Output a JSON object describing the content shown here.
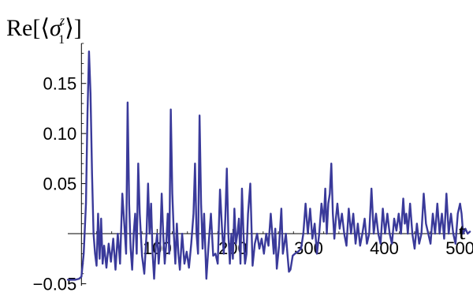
{
  "chart_data": {
    "type": "line",
    "ylabel": {
      "prefix": "Re[⟨",
      "symbol": "σ",
      "superscript": "z",
      "subscript": "1",
      "suffix": "⟩]"
    },
    "xlabel": "t",
    "xlim": [
      -18,
      515
    ],
    "ylim": [
      -0.052,
      0.19
    ],
    "xticks": [
      100,
      200,
      300,
      400,
      500
    ],
    "yticks": [
      -0.05,
      0.05,
      0.1,
      0.15
    ],
    "xtick_labels": [
      "100",
      "200",
      "300",
      "400",
      "500"
    ],
    "ytick_labels": [
      "−0.05",
      "0.05",
      "0.10",
      "0.15"
    ],
    "grid": false,
    "colors": {
      "series": "#3a3a9a",
      "axis": "#000000"
    },
    "series": [
      {
        "points": [
          [
            -18,
            -0.046
          ],
          [
            -8,
            -0.046
          ],
          [
            -3,
            -0.045
          ],
          [
            0,
            -0.043
          ],
          [
            3,
            -0.02
          ],
          [
            6,
            0.03
          ],
          [
            8,
            0.12
          ],
          [
            10,
            0.182
          ],
          [
            12,
            0.14
          ],
          [
            14,
            0.06
          ],
          [
            16,
            0.0
          ],
          [
            18,
            -0.02
          ],
          [
            20,
            -0.032
          ],
          [
            22,
            0.02
          ],
          [
            24,
            -0.025
          ],
          [
            26,
            0.015
          ],
          [
            28,
            -0.03
          ],
          [
            30,
            -0.012
          ],
          [
            33,
            -0.034
          ],
          [
            36,
            -0.01
          ],
          [
            39,
            -0.028
          ],
          [
            42,
            -0.005
          ],
          [
            45,
            -0.036
          ],
          [
            48,
            0.0
          ],
          [
            51,
            -0.03
          ],
          [
            54,
            0.04
          ],
          [
            57,
            0.005
          ],
          [
            59,
            -0.02
          ],
          [
            61,
            0.131
          ],
          [
            63,
            0.03
          ],
          [
            65,
            -0.015
          ],
          [
            67,
            -0.036
          ],
          [
            69,
            0.0
          ],
          [
            71,
            0.02
          ],
          [
            73,
            -0.02
          ],
          [
            75,
            0.07
          ],
          [
            77,
            0.02
          ],
          [
            80,
            -0.022
          ],
          [
            83,
            -0.04
          ],
          [
            86,
            0.0
          ],
          [
            88,
            0.05
          ],
          [
            90,
            0.0
          ],
          [
            92,
            0.03
          ],
          [
            94,
            -0.02
          ],
          [
            96,
            -0.045
          ],
          [
            98,
            -0.015
          ],
          [
            100,
            0.0
          ],
          [
            102,
            -0.03
          ],
          [
            104,
            -0.01
          ],
          [
            106,
            0.04
          ],
          [
            108,
            0.0
          ],
          [
            110,
            -0.03
          ],
          [
            112,
            -0.01
          ],
          [
            114,
            0.02
          ],
          [
            116,
            -0.02
          ],
          [
            118,
            0.124
          ],
          [
            120,
            0.04
          ],
          [
            122,
            0.0
          ],
          [
            124,
            -0.03
          ],
          [
            126,
            0.01
          ],
          [
            128,
            -0.02
          ],
          [
            130,
            -0.036
          ],
          [
            133,
            0.0
          ],
          [
            136,
            -0.03
          ],
          [
            139,
            -0.018
          ],
          [
            142,
            -0.034
          ],
          [
            145,
            -0.01
          ],
          [
            148,
            0.02
          ],
          [
            150,
            0.07
          ],
          [
            152,
            0.0
          ],
          [
            154,
            -0.02
          ],
          [
            156,
            0.118
          ],
          [
            158,
            0.03
          ],
          [
            160,
            -0.015
          ],
          [
            162,
            0.02
          ],
          [
            165,
            -0.045
          ],
          [
            168,
            -0.01
          ],
          [
            171,
            0.02
          ],
          [
            174,
            -0.022
          ],
          [
            177,
            -0.02
          ],
          [
            180,
            -0.03
          ],
          [
            183,
            0.044
          ],
          [
            186,
            0.0
          ],
          [
            188,
            -0.02
          ],
          [
            190,
            0.015
          ],
          [
            192,
            0.065
          ],
          [
            194,
            0.0
          ],
          [
            196,
            -0.03
          ],
          [
            198,
            0.0
          ],
          [
            200,
            -0.025
          ],
          [
            202,
            0.025
          ],
          [
            204,
            -0.01
          ],
          [
            206,
            0.0
          ],
          [
            208,
            0.015
          ],
          [
            210,
            -0.03
          ],
          [
            212,
            0.045
          ],
          [
            214,
            0.0
          ],
          [
            216,
            -0.03
          ],
          [
            218,
            -0.02
          ],
          [
            220,
            0.02
          ],
          [
            223,
            0.05
          ],
          [
            226,
            -0.032
          ],
          [
            229,
            -0.01
          ],
          [
            232,
            0.0
          ],
          [
            235,
            -0.015
          ],
          [
            238,
            -0.005
          ],
          [
            241,
            -0.02
          ],
          [
            244,
            0.0
          ],
          [
            247,
            -0.012
          ],
          [
            250,
            0.02
          ],
          [
            252,
            0.0
          ],
          [
            254,
            -0.02
          ],
          [
            256,
            0.005
          ],
          [
            258,
            -0.035
          ],
          [
            261,
            -0.012
          ],
          [
            264,
            0.025
          ],
          [
            266,
            -0.02
          ],
          [
            268,
            -0.01
          ],
          [
            270,
            0.0
          ],
          [
            272,
            -0.02
          ],
          [
            274,
            -0.038
          ],
          [
            276,
            -0.036
          ],
          [
            279,
            -0.022
          ],
          [
            282,
            -0.02
          ],
          [
            286,
            -0.018
          ],
          [
            290,
            -0.015
          ],
          [
            293,
            0.0
          ],
          [
            296,
            0.03
          ],
          [
            299,
            0.0
          ],
          [
            302,
            0.025
          ],
          [
            305,
            -0.005
          ],
          [
            308,
            0.01
          ],
          [
            311,
            -0.02
          ],
          [
            314,
            0.0
          ],
          [
            317,
            0.03
          ],
          [
            320,
            0.012
          ],
          [
            322,
            0.045
          ],
          [
            324,
            0.0
          ],
          [
            326,
            0.03
          ],
          [
            328,
            0.04
          ],
          [
            330,
            0.07
          ],
          [
            332,
            0.02
          ],
          [
            334,
            -0.005
          ],
          [
            336,
            0.015
          ],
          [
            338,
            0.03
          ],
          [
            341,
            0.005
          ],
          [
            344,
            0.02
          ],
          [
            347,
            0.0
          ],
          [
            350,
            -0.012
          ],
          [
            353,
            0.025
          ],
          [
            356,
            0.0
          ],
          [
            359,
            0.02
          ],
          [
            362,
            -0.01
          ],
          [
            365,
            0.01
          ],
          [
            368,
            -0.012
          ],
          [
            371,
            0.0
          ],
          [
            374,
            0.015
          ],
          [
            377,
            -0.01
          ],
          [
            380,
            0.0
          ],
          [
            383,
            0.045
          ],
          [
            386,
            0.0
          ],
          [
            389,
            0.02
          ],
          [
            392,
            0.0
          ],
          [
            395,
            -0.01
          ],
          [
            398,
            0.025
          ],
          [
            401,
            0.0
          ],
          [
            404,
            0.02
          ],
          [
            407,
            0.0
          ],
          [
            410,
            -0.01
          ],
          [
            413,
            0.015
          ],
          [
            416,
            0.003
          ],
          [
            419,
            0.02
          ],
          [
            422,
            0.0
          ],
          [
            425,
            0.035
          ],
          [
            427,
            0.01
          ],
          [
            429,
            0.02
          ],
          [
            431,
            0.0
          ],
          [
            434,
            0.03
          ],
          [
            437,
            0.0
          ],
          [
            440,
            -0.015
          ],
          [
            443,
            0.01
          ],
          [
            446,
            -0.01
          ],
          [
            449,
            0.0
          ],
          [
            452,
            0.04
          ],
          [
            455,
            0.01
          ],
          [
            458,
            0.0
          ],
          [
            461,
            -0.01
          ],
          [
            464,
            0.02
          ],
          [
            467,
            0.0
          ],
          [
            470,
            0.03
          ],
          [
            473,
            0.0
          ],
          [
            476,
            0.02
          ],
          [
            479,
            -0.005
          ],
          [
            482,
            0.04
          ],
          [
            485,
            0.0
          ],
          [
            488,
            0.02
          ],
          [
            491,
            0.0
          ],
          [
            494,
            -0.01
          ],
          [
            497,
            0.02
          ],
          [
            500,
            0.03
          ],
          [
            502,
            0.02
          ],
          [
            504,
            0.0
          ],
          [
            507,
            0.005
          ],
          [
            510,
            0.0
          ],
          [
            513,
            0.002
          ]
        ]
      }
    ]
  }
}
